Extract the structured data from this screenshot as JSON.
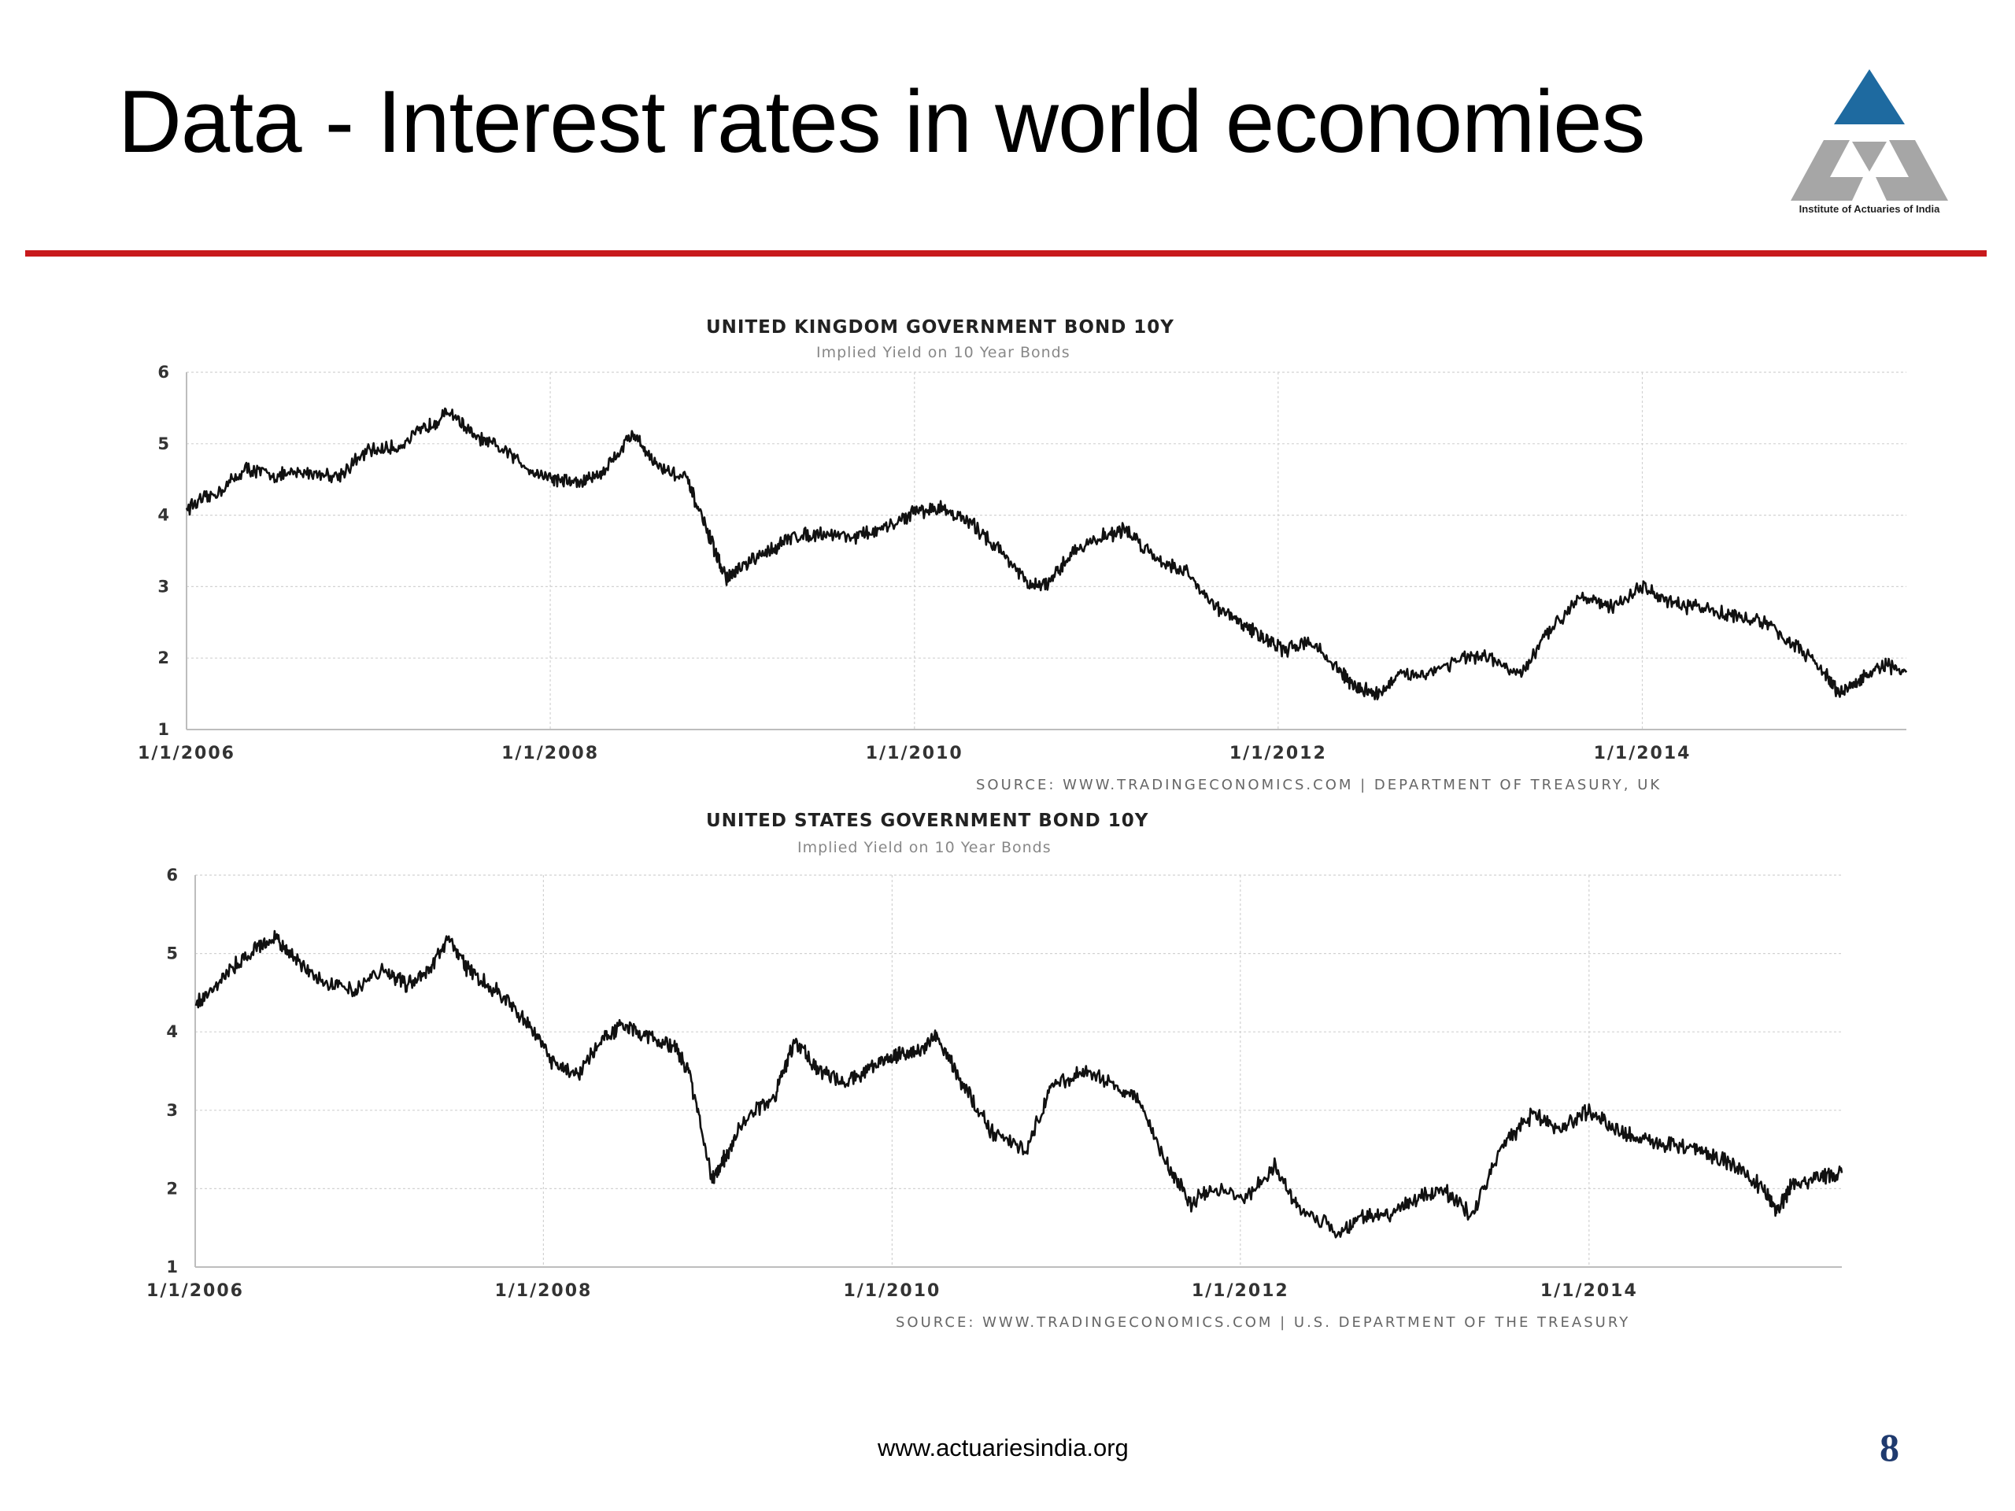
{
  "slide": {
    "title": "Data - Interest rates in world economies",
    "logo_caption": "Institute of Actuaries of India",
    "footer_url": "www.actuariesindia.org",
    "page_number": "8",
    "accent_color": "#c8191c",
    "logo_colors": {
      "top": "#1e6aa0",
      "lower": "#a6a6a6"
    }
  },
  "chart_data": [
    {
      "type": "line",
      "title": "UNITED KINGDOM GOVERNMENT BOND 10Y",
      "subtitle": "Implied Yield on 10 Year Bonds",
      "source": "SOURCE: WWW.TRADINGECONOMICS.COM | DEPARTMENT OF TREASURY, UK",
      "xlabel": "",
      "ylabel": "",
      "ylim": [
        1,
        6
      ],
      "yticks": [
        "1",
        "2",
        "3",
        "4",
        "5",
        "6"
      ],
      "xlim": [
        "2006-01-01",
        "2015-06-15"
      ],
      "xticks": [
        {
          "date": "2006-01-01",
          "label": "1/1/2006"
        },
        {
          "date": "2008-01-01",
          "label": "1/1/2008"
        },
        {
          "date": "2010-01-01",
          "label": "1/1/2010"
        },
        {
          "date": "2012-01-01",
          "label": "1/1/2012"
        },
        {
          "date": "2014-01-01",
          "label": "1/1/2014"
        }
      ],
      "grid": true,
      "series": [
        {
          "x": [
            "2006-01-01",
            "2006-03-01",
            "2006-05-01",
            "2006-07-01",
            "2006-09-01",
            "2006-11-01",
            "2007-01-01",
            "2007-03-01",
            "2007-05-01",
            "2007-06-15",
            "2007-08-01",
            "2007-10-01",
            "2007-12-01",
            "2008-01-15",
            "2008-03-01",
            "2008-04-15",
            "2008-06-15",
            "2008-08-01",
            "2008-10-01",
            "2008-11-15",
            "2008-12-20",
            "2009-01-15",
            "2009-03-15",
            "2009-05-01",
            "2009-07-01",
            "2009-09-01",
            "2009-11-01",
            "2010-01-01",
            "2010-03-01",
            "2010-05-01",
            "2010-07-01",
            "2010-08-20",
            "2010-10-01",
            "2010-11-15",
            "2011-01-15",
            "2011-03-01",
            "2011-05-01",
            "2011-07-01",
            "2011-09-01",
            "2011-10-15",
            "2011-12-01",
            "2012-01-15",
            "2012-03-01",
            "2012-05-01",
            "2012-06-01",
            "2012-07-20",
            "2012-09-01",
            "2012-11-01",
            "2013-01-01",
            "2013-03-01",
            "2013-05-01",
            "2013-07-01",
            "2013-09-01",
            "2013-11-01",
            "2014-01-01",
            "2014-03-01",
            "2014-05-01",
            "2014-07-01",
            "2014-09-01",
            "2014-11-01",
            "2015-01-01",
            "2015-01-31",
            "2015-03-15",
            "2015-05-01",
            "2015-06-15"
          ],
          "y": [
            4.1,
            4.3,
            4.65,
            4.55,
            4.6,
            4.55,
            4.9,
            4.95,
            5.25,
            5.45,
            5.1,
            4.9,
            4.6,
            4.5,
            4.45,
            4.6,
            5.15,
            4.7,
            4.5,
            3.7,
            3.1,
            3.25,
            3.5,
            3.7,
            3.75,
            3.7,
            3.8,
            4.05,
            4.1,
            3.85,
            3.45,
            3.0,
            3.05,
            3.5,
            3.7,
            3.8,
            3.4,
            3.2,
            2.7,
            2.5,
            2.3,
            2.1,
            2.25,
            1.85,
            1.6,
            1.5,
            1.75,
            1.8,
            2.0,
            2.0,
            1.75,
            2.4,
            2.9,
            2.7,
            3.0,
            2.75,
            2.7,
            2.6,
            2.5,
            2.2,
            1.8,
            1.5,
            1.7,
            1.9,
            1.8
          ]
        }
      ]
    },
    {
      "type": "line",
      "title": "UNITED STATES GOVERNMENT BOND 10Y",
      "subtitle": "Implied Yield on 10 Year Bonds",
      "source": "SOURCE: WWW.TRADINGECONOMICS.COM | U.S. DEPARTMENT OF THE TREASURY",
      "xlabel": "",
      "ylabel": "",
      "ylim": [
        1,
        6
      ],
      "yticks": [
        "1",
        "2",
        "3",
        "4",
        "5",
        "6"
      ],
      "xlim": [
        "2006-01-01",
        "2015-06-15"
      ],
      "xticks": [
        {
          "date": "2006-01-01",
          "label": "1/1/2006"
        },
        {
          "date": "2008-01-01",
          "label": "1/1/2008"
        },
        {
          "date": "2010-01-01",
          "label": "1/1/2010"
        },
        {
          "date": "2012-01-01",
          "label": "1/1/2012"
        },
        {
          "date": "2014-01-01",
          "label": "1/1/2014"
        }
      ],
      "grid": true,
      "series": [
        {
          "x": [
            "2006-01-01",
            "2006-03-01",
            "2006-05-01",
            "2006-06-20",
            "2006-08-01",
            "2006-10-01",
            "2006-12-01",
            "2007-02-01",
            "2007-03-20",
            "2007-05-01",
            "2007-06-15",
            "2007-08-01",
            "2007-10-01",
            "2007-12-01",
            "2008-01-20",
            "2008-03-15",
            "2008-05-01",
            "2008-06-15",
            "2008-08-01",
            "2008-10-01",
            "2008-11-01",
            "2008-12-20",
            "2009-01-15",
            "2009-03-01",
            "2009-05-01",
            "2009-06-10",
            "2009-08-01",
            "2009-10-01",
            "2009-12-01",
            "2010-01-15",
            "2010-03-01",
            "2010-04-05",
            "2010-06-01",
            "2010-08-01",
            "2010-10-10",
            "2010-12-01",
            "2011-02-01",
            "2011-04-01",
            "2011-06-01",
            "2011-08-01",
            "2011-09-20",
            "2011-11-01",
            "2012-01-15",
            "2012-03-15",
            "2012-05-01",
            "2012-07-25",
            "2012-09-15",
            "2012-11-01",
            "2013-01-01",
            "2013-03-01",
            "2013-05-01",
            "2013-07-01",
            "2013-09-05",
            "2013-11-01",
            "2014-01-01",
            "2014-03-01",
            "2014-05-01",
            "2014-07-01",
            "2014-09-01",
            "2014-11-01",
            "2015-01-01",
            "2015-01-31",
            "2015-03-01",
            "2015-05-01",
            "2015-06-15"
          ],
          "y": [
            4.35,
            4.7,
            5.05,
            5.2,
            4.9,
            4.65,
            4.55,
            4.8,
            4.6,
            4.75,
            5.2,
            4.75,
            4.5,
            4.1,
            3.6,
            3.45,
            3.9,
            4.1,
            3.95,
            3.8,
            3.5,
            2.1,
            2.4,
            2.9,
            3.2,
            3.9,
            3.5,
            3.35,
            3.6,
            3.7,
            3.75,
            3.95,
            3.3,
            2.7,
            2.5,
            3.3,
            3.5,
            3.35,
            3.15,
            2.3,
            1.8,
            2.0,
            1.9,
            2.3,
            1.75,
            1.45,
            1.65,
            1.65,
            1.85,
            2.0,
            1.65,
            2.55,
            2.95,
            2.75,
            3.0,
            2.75,
            2.6,
            2.55,
            2.45,
            2.3,
            2.0,
            1.7,
            2.05,
            2.15,
            2.2
          ]
        }
      ]
    }
  ]
}
